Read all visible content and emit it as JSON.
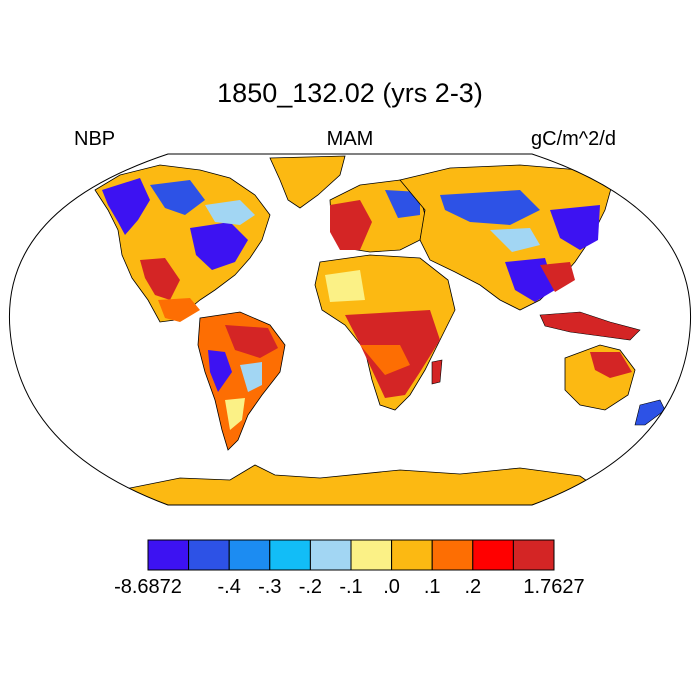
{
  "title": "1850_132.02 (yrs 2-3)",
  "left_label": "NBP",
  "center_label": "MAM",
  "right_label": "gC/m^2/d",
  "colorbar": {
    "colors": [
      "#3d12f2",
      "#2d52e6",
      "#1c8cf2",
      "#12bdf7",
      "#a2d6f3",
      "#fbf186",
      "#fcb912",
      "#fd6e03",
      "#ff0000",
      "#d42525"
    ],
    "labels": [
      "-8.6872",
      "-.4",
      "-.3",
      "-.2",
      "-.1",
      ".0",
      ".1",
      ".2",
      "1.7627"
    ],
    "label_positions": [
      0,
      2,
      3,
      4,
      5,
      6,
      7,
      8,
      10
    ]
  },
  "map_colors": {
    "land_default": "#fcb912",
    "ocean": "#ffffff",
    "coast": "#000000"
  }
}
